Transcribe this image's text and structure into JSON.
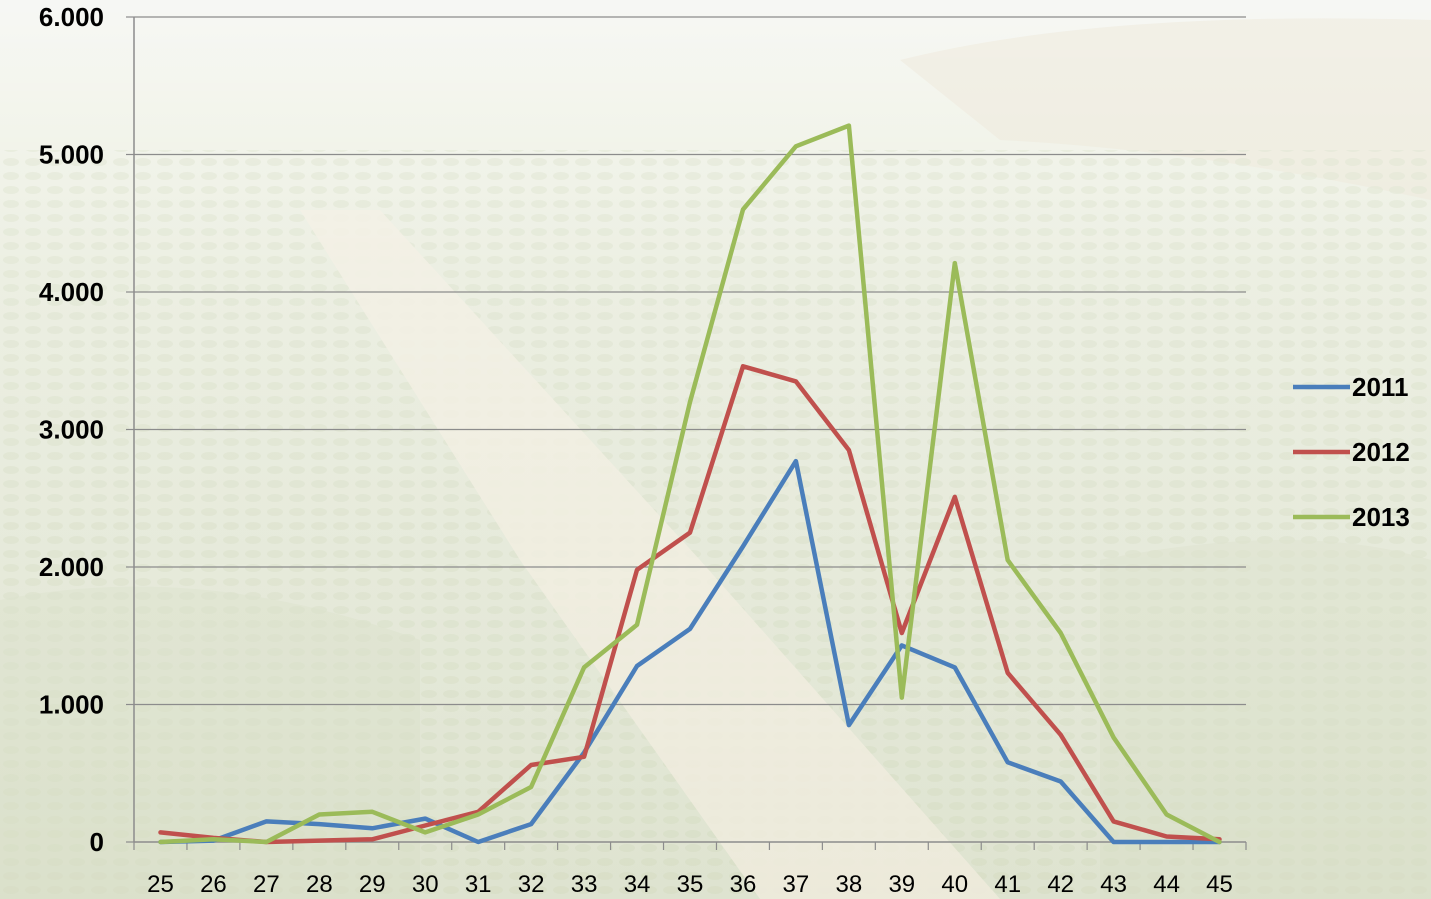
{
  "chart_data": {
    "type": "line",
    "title": "",
    "xlabel": "",
    "ylabel": "",
    "x": [
      "25",
      "26",
      "27",
      "28",
      "29",
      "30",
      "31",
      "32",
      "33",
      "34",
      "35",
      "36",
      "37",
      "38",
      "39",
      "40",
      "41",
      "42",
      "43",
      "44",
      "45"
    ],
    "yticks": [
      "0",
      "1.000",
      "2.000",
      "3.000",
      "4.000",
      "5.000",
      "6.000"
    ],
    "ylim": [
      0,
      6000
    ],
    "grid": true,
    "legend_position": "right",
    "series": [
      {
        "name": "2011",
        "color": "#4a7ebb",
        "values": [
          0,
          10,
          150,
          130,
          100,
          170,
          0,
          130,
          650,
          1280,
          1550,
          2150,
          2770,
          850,
          1430,
          1270,
          580,
          440,
          0,
          0,
          0
        ]
      },
      {
        "name": "2012",
        "color": "#c0504d",
        "values": [
          70,
          30,
          0,
          10,
          20,
          120,
          220,
          560,
          620,
          1980,
          2250,
          3460,
          3350,
          2850,
          1520,
          2510,
          1230,
          780,
          150,
          40,
          20
        ]
      },
      {
        "name": "2013",
        "color": "#9bbb59",
        "values": [
          0,
          20,
          0,
          200,
          220,
          70,
          200,
          400,
          1270,
          1580,
          3200,
          4600,
          5060,
          5210,
          1050,
          4210,
          2050,
          1520,
          760,
          200,
          0
        ]
      }
    ]
  }
}
